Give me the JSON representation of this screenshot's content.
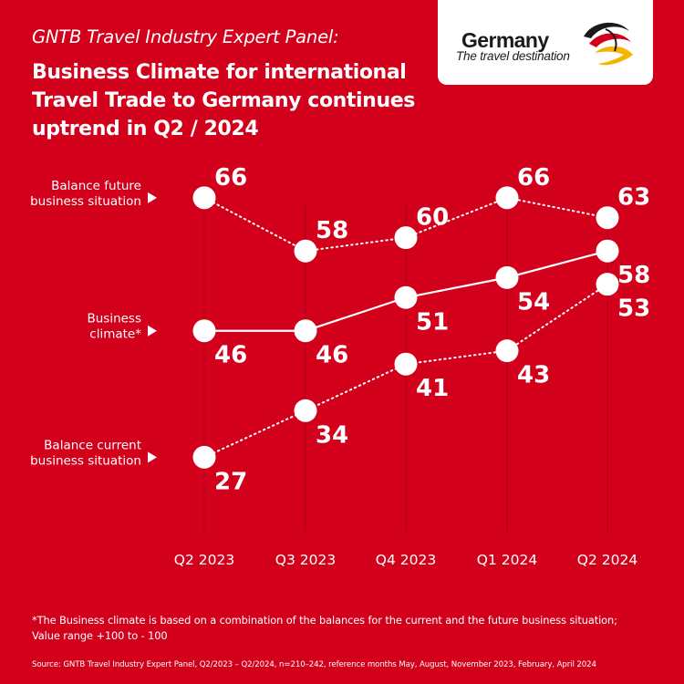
{
  "header": {
    "subtitle": "GNTB Travel Industry Expert Panel:",
    "title_lines": [
      "Business Climate for international",
      "Travel Trade to Germany continues",
      "uptrend in Q2 / 2024"
    ]
  },
  "logo": {
    "name": "Germany",
    "tagline": "The travel destination",
    "icon": "eagle-swoosh-icon",
    "colors": [
      "#1a1a1a",
      "#d3001b",
      "#f5b400"
    ]
  },
  "chart_data": {
    "type": "line",
    "categories": [
      "Q2 2023",
      "Q3 2023",
      "Q4 2023",
      "Q1 2024",
      "Q2 2024"
    ],
    "series": [
      {
        "name": "Balance future business situation",
        "label_lines": [
          "Balance future",
          "business situation"
        ],
        "values": [
          66,
          58,
          60,
          66,
          63
        ],
        "line_style": "dotted",
        "label_placement": "above"
      },
      {
        "name": "Business climate*",
        "label_lines": [
          "Business",
          "climate*"
        ],
        "values": [
          46,
          46,
          51,
          54,
          58
        ],
        "line_style": "solid",
        "label_placement": "below"
      },
      {
        "name": "Balance current business situation",
        "label_lines": [
          "Balance current",
          "business situation"
        ],
        "values": [
          27,
          34,
          41,
          43,
          53
        ],
        "line_style": "dotted",
        "label_placement": "below"
      }
    ],
    "grid": "vertical",
    "colors": {
      "background": "#d3001b",
      "marks": "#ffffff",
      "grid": "#b8001a"
    }
  },
  "footnote": {
    "lines": [
      "*The Business climate is based on a combination of the balances for the current and the future business situation;",
      "Value range +100 to - 100"
    ]
  },
  "source": "Source:  GNTB Travel Industry Expert Panel, Q2/2023 – Q2/2024, n=210–242, reference months May, August, November 2023, February, April 2024"
}
